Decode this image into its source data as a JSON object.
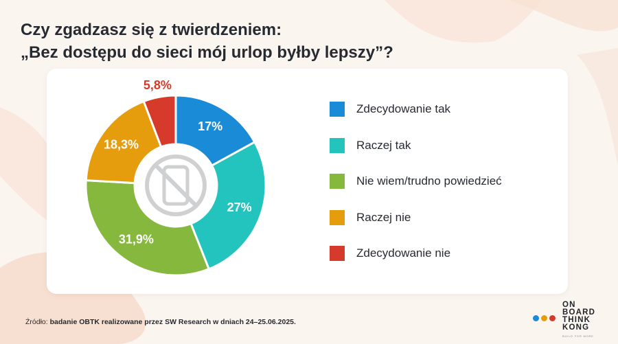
{
  "title": {
    "line1": "Czy zgadzasz się z twierdzeniem:",
    "line2": "„Bez dostępu do sieci mój urlop byłby lepszy”?"
  },
  "chart_data": {
    "type": "pie",
    "style": "donut",
    "center_icon": "no-phone-icon",
    "categories": [
      "Zdecydowanie tak",
      "Raczej tak",
      "Nie wiem/trudno powiedzieć",
      "Raczej nie",
      "Zdecydowanie nie"
    ],
    "values": [
      17,
      27,
      31.9,
      18.3,
      5.8
    ],
    "value_labels": [
      "17%",
      "27%",
      "31,9%",
      "18,3%",
      "5,8%"
    ],
    "colors": [
      "#1a8bd6",
      "#23c4bd",
      "#85b83c",
      "#e59d0e",
      "#d63a2a"
    ],
    "legend_position": "right"
  },
  "source": {
    "prefix": "Źródło:",
    "text": "badanie OBTK  realizowane przez SW Research w dniach 24–25.06.2025."
  },
  "brand": {
    "lines": [
      "ON",
      "BOARD",
      "THINK",
      "KONG"
    ],
    "tagline": "BUILD FOR MORE",
    "dot_colors": [
      "#1a8bd6",
      "#e59d0e",
      "#d63a2a"
    ]
  }
}
